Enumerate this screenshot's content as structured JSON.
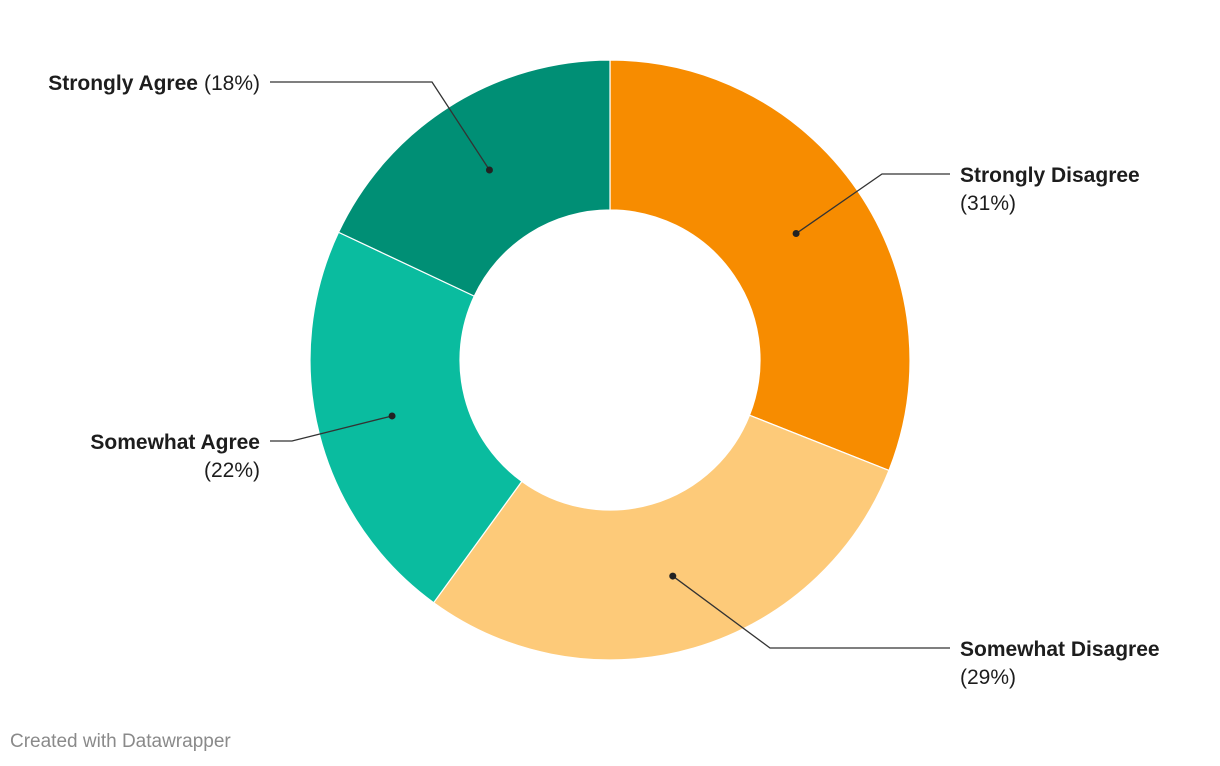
{
  "chart_data": {
    "type": "pie",
    "style": "donut",
    "title": "",
    "slices": [
      {
        "label": "Strongly Disagree",
        "value": 31,
        "value_label": "(31%)",
        "color": "#f78c00"
      },
      {
        "label": "Somewhat Disagree",
        "value": 29,
        "value_label": "(29%)",
        "color": "#fdca79"
      },
      {
        "label": "Somewhat Agree",
        "value": 22,
        "value_label": "(22%)",
        "color": "#0abc9f"
      },
      {
        "label": "Strongly Agree",
        "value": 18,
        "value_label": "(18%)",
        "color": "#008f75"
      }
    ],
    "start": "top",
    "direction": "clockwise",
    "legend": "none"
  },
  "footer": {
    "credit": "Created with Datawrapper"
  }
}
